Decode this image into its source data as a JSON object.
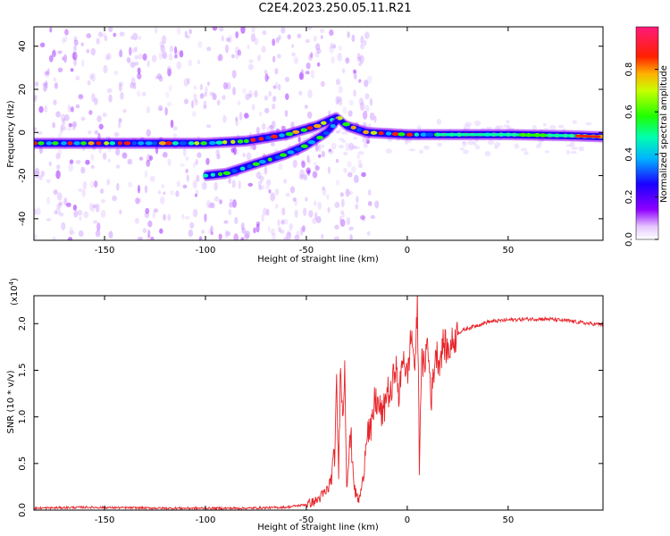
{
  "title": "C2E4.2023.250.05.11.R21",
  "colors": {
    "snr_line": "#e8262b",
    "axis": "#000000",
    "background": "#ffffff"
  },
  "chart_data": [
    {
      "type": "heatmap",
      "xlabel": "Height of straight line (km)",
      "ylabel": "Frequency (Hz)",
      "xlim": [
        -185,
        97
      ],
      "ylim": [
        -50,
        49
      ],
      "xticks": [
        -150,
        -100,
        -50,
        0,
        50
      ],
      "yticks": [
        -40,
        -20,
        0,
        20,
        40
      ],
      "colorbar": {
        "label": "Normalized spectral amplitude",
        "range": [
          0.0,
          1.0
        ],
        "ticks": [
          0.0,
          0.2,
          0.4,
          0.6,
          0.8
        ]
      },
      "ridges": [
        {
          "x": [
            -185,
            -150,
            -120,
            -100,
            -80,
            -60,
            -45,
            -35,
            -30,
            -20,
            0,
            20,
            50,
            80,
            97
          ],
          "y": [
            -5,
            -5,
            -5,
            -5,
            -4,
            -1,
            3,
            7,
            3,
            0,
            -1,
            -1,
            -1,
            -1.5,
            -2
          ]
        },
        {
          "x": [
            -100,
            -90,
            -80,
            -70,
            -60,
            -50,
            -40,
            -35
          ],
          "y": [
            -20,
            -19,
            -16,
            -13,
            -10,
            -6,
            0,
            5
          ]
        }
      ]
    },
    {
      "type": "line",
      "xlabel": "Height of straight line (km)",
      "ylabel": "SNR (10 * v/v)",
      "y_scale_label": "(x10",
      "y_scale_exp": "4",
      "y_scale_close": ")",
      "xlim": [
        -185,
        97
      ],
      "ylim": [
        0,
        2.3
      ],
      "xticks": [
        -150,
        -100,
        -50,
        0,
        50
      ],
      "yticks": [
        0.0,
        0.5,
        1.0,
        1.5,
        2.0
      ],
      "series": [
        {
          "x": [
            -185,
            -160,
            -120,
            -80,
            -60,
            -50,
            -45,
            -40,
            -38,
            -36,
            -35,
            -34,
            -33,
            -32,
            -31,
            -30,
            -28,
            -26,
            -24,
            -22,
            -20,
            -18,
            -16,
            -14,
            -12,
            -10,
            -8,
            -6,
            -4,
            -2,
            0,
            2,
            4,
            5,
            6,
            7,
            8,
            10,
            12,
            14,
            16,
            18,
            20,
            25,
            30,
            40,
            50,
            60,
            70,
            80,
            90,
            97
          ],
          "y": [
            0.02,
            0.03,
            0.02,
            0.02,
            0.03,
            0.06,
            0.1,
            0.2,
            0.3,
            0.6,
            1.3,
            0.4,
            1.7,
            0.9,
            1.6,
            0.3,
            0.8,
            0.2,
            0.1,
            0.3,
            0.9,
            0.8,
            1.2,
            1.1,
            1.0,
            1.3,
            1.2,
            1.6,
            1.2,
            1.7,
            1.4,
            1.9,
            1.5,
            2.3,
            0.5,
            1.6,
            1.5,
            1.8,
            1.2,
            1.7,
            1.6,
            1.8,
            1.7,
            1.9,
            1.95,
            2.02,
            2.04,
            2.05,
            2.05,
            2.03,
            2.0,
            1.99
          ]
        }
      ]
    }
  ]
}
